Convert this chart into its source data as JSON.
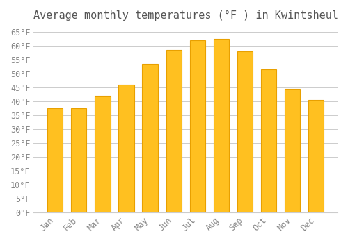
{
  "title": "Average monthly temperatures (°F ) in Kwintsheul",
  "months": [
    "Jan",
    "Feb",
    "Mar",
    "Apr",
    "May",
    "Jun",
    "Jul",
    "Aug",
    "Sep",
    "Oct",
    "Nov",
    "Dec"
  ],
  "values": [
    37.5,
    37.5,
    42.0,
    46.0,
    53.5,
    58.5,
    62.0,
    62.5,
    58.0,
    51.5,
    44.5,
    40.5
  ],
  "bar_color": "#FFC020",
  "bar_edge_color": "#E8A000",
  "ylim": [
    0,
    67
  ],
  "ytick_step": 5,
  "background_color": "#FFFFFF",
  "grid_color": "#CCCCCC",
  "title_fontsize": 11,
  "tick_fontsize": 8.5,
  "font_family": "monospace"
}
